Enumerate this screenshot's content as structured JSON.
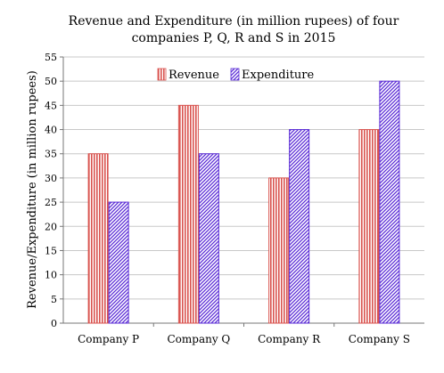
{
  "chart_data": {
    "type": "bar",
    "title_lines": [
      "Revenue and Expenditure (in million rupees) of four",
      "companies P, Q, R and S in 2015"
    ],
    "ylabel": "Revenue/Expenditure (in million rupees)",
    "xlabel": "",
    "categories": [
      "Company P",
      "Company Q",
      "Company R",
      "Company S"
    ],
    "ylim": [
      0,
      55
    ],
    "yticks": [
      0,
      5,
      10,
      15,
      20,
      25,
      30,
      35,
      40,
      45,
      50,
      55
    ],
    "grid": true,
    "legend_position": "top-center",
    "series": [
      {
        "name": "Revenue",
        "values": [
          35,
          45,
          30,
          40
        ],
        "color": "#d9534f",
        "pattern": "vertical-stripes"
      },
      {
        "name": "Expenditure",
        "values": [
          25,
          35,
          40,
          50
        ],
        "color": "#5a2bd6",
        "pattern": "diagonal-stripes"
      }
    ]
  }
}
